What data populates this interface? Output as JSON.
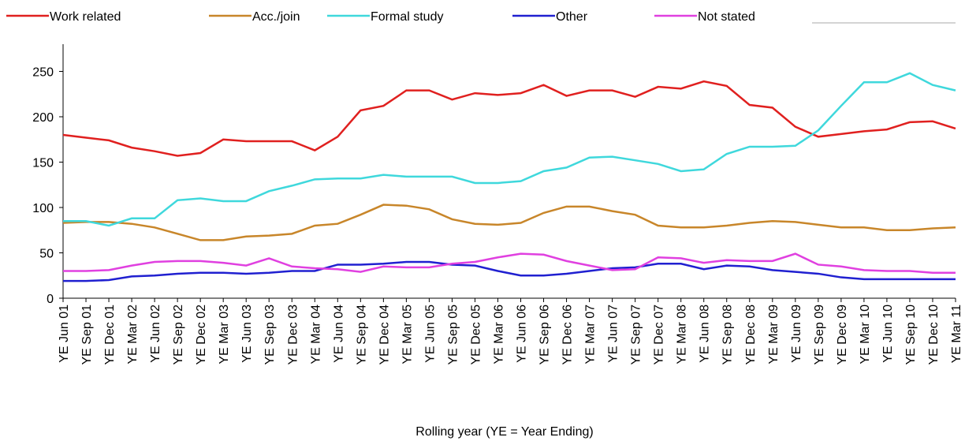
{
  "chart_data": {
    "type": "line",
    "x_label": "Rolling year (YE = Year Ending)",
    "categories": [
      "YE Jun 01",
      "YE Sep 01",
      "YE Dec 01",
      "YE Mar 02",
      "YE Jun 02",
      "YE Sep 02",
      "YE Dec 02",
      "YE Mar 03",
      "YE Jun 03",
      "YE Sep 03",
      "YE Dec 03",
      "YE Mar 04",
      "YE Jun 04",
      "YE Sep 04",
      "YE Dec 04",
      "YE Mar 05",
      "YE Jun 05",
      "YE Sep 05",
      "YE Dec 05",
      "YE Mar 06",
      "YE Jun 06",
      "YE Sep 06",
      "YE Dec 06",
      "YE Mar 07",
      "YE Jun 07",
      "YE Sep 07",
      "YE Dec 07",
      "YE Mar 08",
      "YE Jun 08",
      "YE Sep 08",
      "YE Dec 08",
      "YE Mar 09",
      "YE Jun 09",
      "YE Sep 09",
      "YE Dec 09",
      "YE Mar 10",
      "YE Jun 10",
      "YE Sep 10",
      "YE Dec 10",
      "YE Mar 11"
    ],
    "series": [
      {
        "name": "Work related",
        "color": "#e0201f",
        "values": [
          180,
          177,
          174,
          166,
          162,
          157,
          160,
          175,
          173,
          173,
          173,
          163,
          178,
          207,
          212,
          229,
          229,
          219,
          226,
          224,
          226,
          235,
          223,
          229,
          229,
          222,
          233,
          231,
          239,
          234,
          213,
          210,
          189,
          178,
          181,
          184,
          186,
          194,
          195,
          187
        ]
      },
      {
        "name": "Acc./join",
        "color": "#c8862a",
        "values": [
          83,
          84,
          84,
          82,
          78,
          71,
          64,
          64,
          68,
          69,
          71,
          80,
          82,
          92,
          103,
          102,
          98,
          87,
          82,
          81,
          83,
          94,
          101,
          101,
          96,
          92,
          80,
          78,
          78,
          80,
          83,
          85,
          84,
          81,
          78,
          78,
          75,
          75,
          77,
          78
        ]
      },
      {
        "name": "Formal study",
        "color": "#3fd8dc",
        "values": [
          85,
          85,
          80,
          88,
          88,
          108,
          110,
          107,
          107,
          118,
          124,
          131,
          132,
          132,
          136,
          134,
          134,
          134,
          127,
          127,
          129,
          140,
          144,
          155,
          156,
          152,
          148,
          140,
          142,
          159,
          167,
          167,
          168,
          185,
          212,
          238,
          238,
          248,
          235,
          229
        ]
      },
      {
        "name": "Other",
        "color": "#2020d0",
        "values": [
          19,
          19,
          20,
          24,
          25,
          27,
          28,
          28,
          27,
          28,
          30,
          30,
          37,
          37,
          38,
          40,
          40,
          37,
          36,
          30,
          25,
          25,
          27,
          30,
          33,
          34,
          38,
          38,
          32,
          36,
          35,
          31,
          29,
          27,
          23,
          21,
          21,
          21,
          21,
          21
        ]
      },
      {
        "name": "Not stated",
        "color": "#e040e0",
        "values": [
          30,
          30,
          31,
          36,
          40,
          41,
          41,
          39,
          36,
          44,
          35,
          33,
          32,
          29,
          35,
          34,
          34,
          38,
          40,
          45,
          49,
          48,
          41,
          36,
          31,
          32,
          45,
          44,
          39,
          42,
          41,
          41,
          49,
          37,
          35,
          31,
          30,
          30,
          28,
          28
        ]
      }
    ],
    "ylim": [
      0,
      280
    ],
    "yticks": [
      0,
      50,
      100,
      150,
      200,
      250
    ],
    "legend": "top"
  }
}
